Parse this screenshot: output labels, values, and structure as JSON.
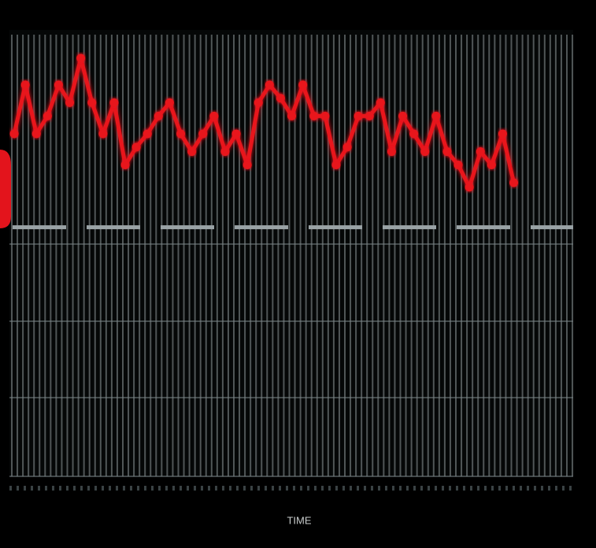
{
  "chart_data": {
    "type": "line",
    "x_label": "TIME",
    "categories": [
      null,
      null,
      null,
      null,
      null,
      null,
      null,
      null,
      null,
      null,
      null,
      null,
      null,
      null,
      null,
      null,
      null,
      null,
      null,
      null,
      null,
      null,
      null,
      null,
      null,
      null,
      null,
      null,
      null,
      null,
      null,
      null,
      null,
      null,
      null,
      null,
      null,
      null,
      null,
      null,
      null,
      null,
      null,
      null,
      null,
      null
    ],
    "series": [
      {
        "color": "#e8121c",
        "values": [
          77,
          88,
          77,
          81,
          88,
          84,
          94,
          84,
          77,
          84,
          70,
          74,
          77,
          81,
          84,
          77,
          73,
          77,
          81,
          73,
          77,
          70,
          84,
          88,
          85,
          81,
          88,
          81,
          81,
          70,
          74,
          81,
          81,
          84,
          73,
          81,
          77,
          73,
          81,
          73,
          70,
          65,
          73,
          70,
          77,
          66
        ]
      }
    ],
    "reference_line": {
      "value": 56,
      "color": "#9aa3a6",
      "style": "dashed"
    },
    "ylim": [
      0,
      100
    ],
    "grid": true
  }
}
